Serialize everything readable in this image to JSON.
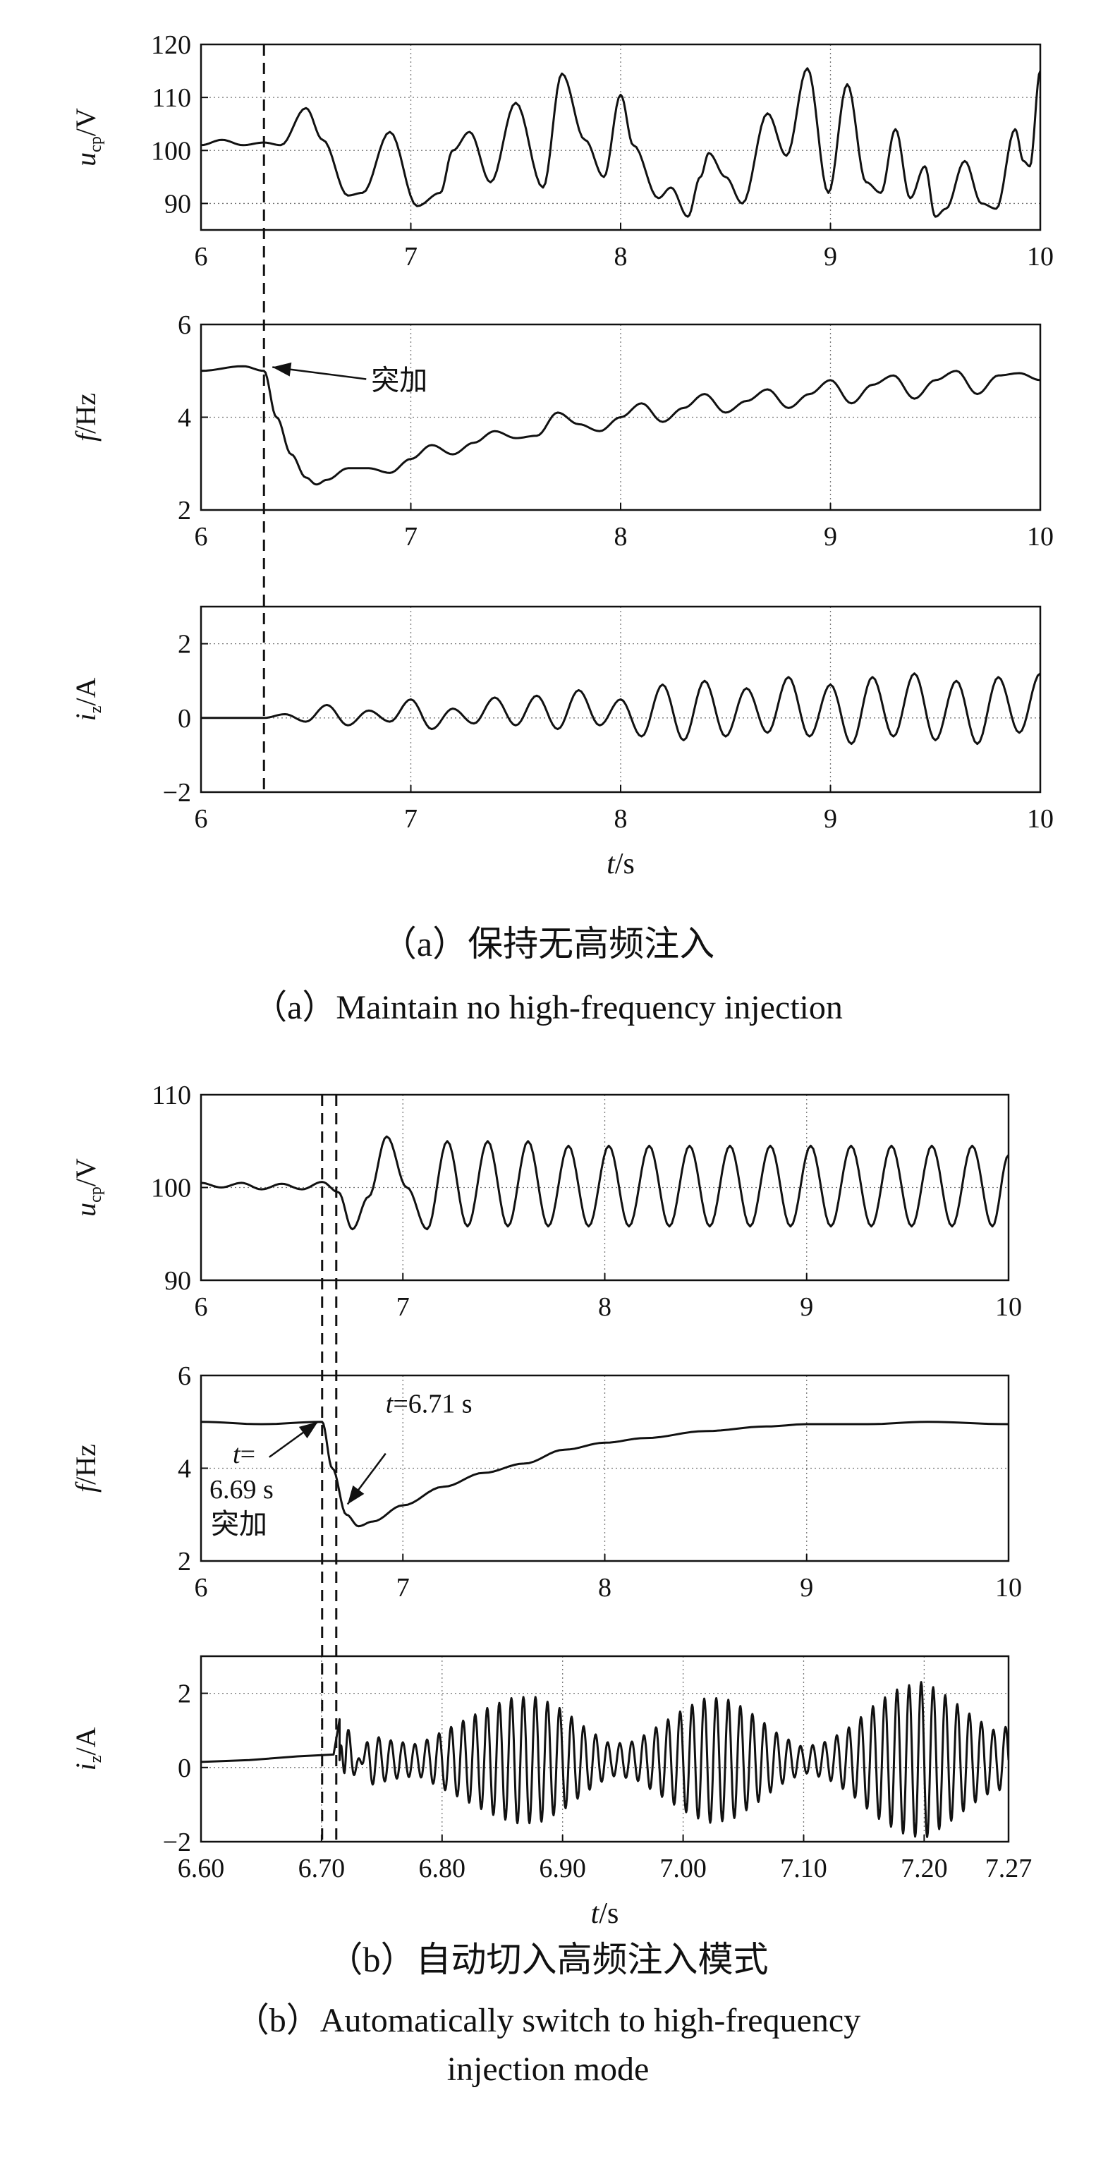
{
  "figure": {
    "caption_a_cn": "（a）保持无高频注入",
    "caption_a_en": "（a）Maintain no high-frequency injection",
    "caption_b_cn": "（b）自动切入高频注入模式",
    "caption_b_en_line1": "（b）Automatically switch to high-frequency",
    "caption_b_en_line2": "injection mode"
  },
  "chart_data": [
    {
      "id": "a1",
      "type": "line",
      "ylabel": "u_cp/V",
      "ylabel_main": "u",
      "ylabel_sub": "cp",
      "ylabel_unit": "/V",
      "xlim": [
        6,
        10
      ],
      "ylim": [
        85,
        120
      ],
      "xticks": [
        "6",
        "7",
        "8",
        "9",
        "10"
      ],
      "xtick_values": [
        6,
        7,
        8,
        9,
        10
      ],
      "yticks": [
        "90",
        "100",
        "110",
        "120"
      ],
      "ytick_values": [
        90,
        100,
        110,
        120
      ],
      "xlabel": "",
      "grid": true,
      "vline_dashed": [
        6.3
      ],
      "series": [
        {
          "x": [
            6.0,
            6.1,
            6.2,
            6.3,
            6.38,
            6.5,
            6.58,
            6.7,
            6.77,
            6.9,
            7.03,
            7.14,
            7.2,
            7.28,
            7.38,
            7.5,
            7.63,
            7.72,
            7.83,
            7.92,
            8.0,
            8.06,
            8.18,
            8.24,
            8.32,
            8.38,
            8.42,
            8.5,
            8.58,
            8.7,
            8.79,
            8.89,
            8.99,
            9.08,
            9.17,
            9.24,
            9.31,
            9.38,
            9.45,
            9.5,
            9.55,
            9.64,
            9.72,
            9.79,
            9.88,
            9.92,
            9.95,
            10.0
          ],
          "y": [
            101,
            102,
            101,
            101.5,
            101,
            108,
            102,
            91.5,
            92,
            103.5,
            89.5,
            92,
            100,
            103.5,
            94,
            109,
            93,
            114.5,
            102,
            95,
            110.5,
            101,
            91,
            93,
            87.5,
            95,
            99.5,
            95,
            90,
            107,
            99,
            115.5,
            92,
            112.5,
            94,
            92,
            104,
            91,
            97,
            87.5,
            89,
            98,
            90,
            89,
            104,
            98,
            97,
            115
          ]
        }
      ]
    },
    {
      "id": "a2",
      "type": "line",
      "ylabel": "f/Hz",
      "ylabel_main": "f",
      "ylabel_sub": "",
      "ylabel_unit": "/Hz",
      "xlim": [
        6,
        10
      ],
      "ylim": [
        2,
        6
      ],
      "xticks": [
        "6",
        "7",
        "8",
        "9",
        "10"
      ],
      "xtick_values": [
        6,
        7,
        8,
        9,
        10
      ],
      "yticks": [
        "2",
        "4",
        "6"
      ],
      "ytick_values": [
        2,
        4,
        6
      ],
      "xlabel": "",
      "grid": true,
      "vline_dashed": [
        6.3
      ],
      "annotations": [
        {
          "text": "突加",
          "x": 6.3,
          "y": 5.05
        }
      ],
      "series": [
        {
          "x": [
            6.0,
            6.2,
            6.3,
            6.36,
            6.43,
            6.5,
            6.55,
            6.6,
            6.7,
            6.8,
            6.9,
            7.0,
            7.1,
            7.2,
            7.3,
            7.4,
            7.5,
            7.6,
            7.7,
            7.8,
            7.9,
            8.0,
            8.1,
            8.2,
            8.3,
            8.4,
            8.5,
            8.6,
            8.7,
            8.8,
            8.9,
            9.0,
            9.1,
            9.2,
            9.3,
            9.4,
            9.5,
            9.6,
            9.7,
            9.8,
            9.9,
            10.0
          ],
          "y": [
            5.0,
            5.1,
            5.0,
            4.0,
            3.2,
            2.7,
            2.55,
            2.65,
            2.9,
            2.9,
            2.8,
            3.1,
            3.4,
            3.2,
            3.45,
            3.7,
            3.55,
            3.6,
            4.1,
            3.85,
            3.7,
            4.0,
            4.3,
            3.9,
            4.2,
            4.5,
            4.1,
            4.35,
            4.6,
            4.2,
            4.5,
            4.8,
            4.3,
            4.7,
            4.9,
            4.4,
            4.8,
            5.0,
            4.5,
            4.9,
            4.95,
            4.8
          ]
        }
      ]
    },
    {
      "id": "a3",
      "type": "line",
      "ylabel": "i_z/A",
      "ylabel_main": "i",
      "ylabel_sub": "z",
      "ylabel_unit": "/A",
      "xlim": [
        6,
        10
      ],
      "ylim": [
        -2,
        3
      ],
      "xticks": [
        "6",
        "7",
        "8",
        "9",
        "10"
      ],
      "xtick_values": [
        6,
        7,
        8,
        9,
        10
      ],
      "yticks": [
        "−2",
        "0",
        "2"
      ],
      "ytick_values": [
        -2,
        0,
        2
      ],
      "xlabel": "t/s",
      "xlabel_main": "t",
      "xlabel_unit": "/s",
      "grid": true,
      "vline_dashed": [
        6.3
      ],
      "series": [
        {
          "x": [
            6.0,
            6.3,
            6.4,
            6.5,
            6.6,
            6.7,
            6.8,
            6.9,
            7.0,
            7.1,
            7.2,
            7.3,
            7.4,
            7.5,
            7.6,
            7.7,
            7.8,
            7.9,
            8.0,
            8.1,
            8.2,
            8.3,
            8.4,
            8.5,
            8.6,
            8.7,
            8.8,
            8.9,
            9.0,
            9.1,
            9.2,
            9.3,
            9.4,
            9.5,
            9.6,
            9.7,
            9.8,
            9.9,
            10.0
          ],
          "y": [
            0.0,
            0.0,
            0.1,
            -0.1,
            0.35,
            -0.2,
            0.2,
            -0.1,
            0.5,
            -0.3,
            0.25,
            -0.15,
            0.55,
            -0.2,
            0.6,
            -0.3,
            0.75,
            -0.2,
            0.5,
            -0.5,
            0.9,
            -0.6,
            1.0,
            -0.5,
            0.8,
            -0.4,
            1.1,
            -0.5,
            0.9,
            -0.7,
            1.1,
            -0.5,
            1.2,
            -0.6,
            1.0,
            -0.7,
            1.1,
            -0.4,
            1.2
          ]
        }
      ]
    },
    {
      "id": "b1",
      "type": "line",
      "ylabel": "u_cp/V",
      "ylabel_main": "u",
      "ylabel_sub": "cp",
      "ylabel_unit": "/V",
      "xlim": [
        6,
        10
      ],
      "ylim": [
        90,
        110
      ],
      "xticks": [
        "6",
        "7",
        "8",
        "9",
        "10"
      ],
      "xtick_values": [
        6,
        7,
        8,
        9,
        10
      ],
      "yticks": [
        "90",
        "100",
        "110"
      ],
      "ytick_values": [
        90,
        100,
        110
      ],
      "xlabel": "",
      "grid": true,
      "vline_dashed": [
        6.6,
        6.67
      ],
      "series": [
        {
          "x": [
            6.0,
            6.1,
            6.2,
            6.3,
            6.4,
            6.5,
            6.6,
            6.68,
            6.75,
            6.83,
            6.92,
            7.02,
            7.12,
            7.22,
            7.32,
            7.42,
            7.52,
            7.62,
            7.72,
            7.82,
            7.92,
            8.02,
            8.12,
            8.22,
            8.32,
            8.42,
            8.52,
            8.62,
            8.72,
            8.82,
            8.92,
            9.02,
            9.12,
            9.22,
            9.32,
            9.42,
            9.52,
            9.62,
            9.72,
            9.82,
            9.92,
            10.0
          ],
          "y": [
            100.5,
            100.0,
            100.5,
            99.8,
            100.4,
            99.8,
            100.6,
            99.5,
            95.5,
            99,
            105.5,
            100,
            95.5,
            105,
            95.8,
            105,
            95.8,
            105,
            95.8,
            104.5,
            95.8,
            104.5,
            95.8,
            104.5,
            95.8,
            104.5,
            95.8,
            104.5,
            95.8,
            104.5,
            95.8,
            104.5,
            95.8,
            104.5,
            95.8,
            104.5,
            95.8,
            104.5,
            95.8,
            104.5,
            95.8,
            103.5
          ]
        }
      ]
    },
    {
      "id": "b2",
      "type": "line",
      "ylabel": "f/Hz",
      "ylabel_main": "f",
      "ylabel_sub": "",
      "ylabel_unit": "/Hz",
      "xlim": [
        6,
        10
      ],
      "ylim": [
        2,
        6
      ],
      "xticks": [
        "6",
        "7",
        "8",
        "9",
        "10"
      ],
      "xtick_values": [
        6,
        7,
        8,
        9,
        10
      ],
      "yticks": [
        "2",
        "4",
        "6"
      ],
      "ytick_values": [
        2,
        4,
        6
      ],
      "xlabel": "",
      "grid": true,
      "vline_dashed": [
        6.6,
        6.67
      ],
      "annotations": [
        {
          "text": "t=",
          "x": 6.6,
          "y": 5.0
        },
        {
          "text": "6.69 s",
          "x": 6.6,
          "y": 5.0
        },
        {
          "text": "突加",
          "x": 6.6,
          "y": 5.0
        },
        {
          "text": "t=6.71 s",
          "x": 6.67,
          "y": 4.0
        }
      ],
      "series": [
        {
          "x": [
            6.0,
            6.3,
            6.6,
            6.65,
            6.72,
            6.78,
            6.85,
            7.0,
            7.2,
            7.4,
            7.6,
            7.8,
            8.0,
            8.2,
            8.5,
            8.8,
            9.0,
            9.3,
            9.6,
            10.0
          ],
          "y": [
            5.0,
            4.95,
            5.0,
            4.0,
            3.0,
            2.75,
            2.85,
            3.2,
            3.6,
            3.9,
            4.1,
            4.4,
            4.55,
            4.65,
            4.8,
            4.9,
            4.95,
            4.95,
            5.0,
            4.95
          ]
        }
      ]
    },
    {
      "id": "b3",
      "type": "line",
      "ylabel": "i_z/A",
      "ylabel_main": "i",
      "ylabel_sub": "z",
      "ylabel_unit": "/A",
      "xlim": [
        6.6,
        7.27
      ],
      "ylim": [
        -2,
        3
      ],
      "xticks": [
        "6.60",
        "6.70",
        "6.80",
        "6.90",
        "7.00",
        "7.10",
        "7.20",
        "7.27"
      ],
      "xtick_values": [
        6.6,
        6.7,
        6.8,
        6.9,
        7.0,
        7.1,
        7.2,
        7.27
      ],
      "yticks": [
        "−2",
        "0",
        "2"
      ],
      "ytick_values": [
        -2,
        0,
        2
      ],
      "xlabel": "t/s",
      "xlabel_main": "t",
      "xlabel_unit": "/s",
      "grid": true,
      "vline_dashed": [
        6.7,
        6.71
      ],
      "series": [
        {
          "x": [
            6.6,
            6.64,
            6.68,
            6.71,
            6.715,
            6.72,
            6.74,
            6.76,
            6.78,
            6.8,
            6.82,
            6.84,
            6.86,
            6.88,
            6.9,
            6.92,
            6.94,
            6.96,
            6.98,
            7.0,
            7.02,
            7.04,
            7.06,
            7.08,
            7.1,
            7.12,
            7.14,
            7.16,
            7.18,
            7.2,
            7.22,
            7.24,
            7.26,
            7.27
          ],
          "y": [
            0.15,
            0.2,
            0.3,
            0.35,
            1.3,
            -1.2,
            0.8,
            0.6,
            0.5,
            0.9,
            1.3,
            1.7,
            2.0,
            2.0,
            1.6,
            1.0,
            0.5,
            0.6,
            1.1,
            1.6,
            2.0,
            1.9,
            1.4,
            0.8,
            0.4,
            0.6,
            1.1,
            1.8,
            2.3,
            2.5,
            2.0,
            1.4,
            0.9,
            1.1
          ],
          "envelope": true,
          "carrier_hz": 100
        }
      ]
    }
  ]
}
